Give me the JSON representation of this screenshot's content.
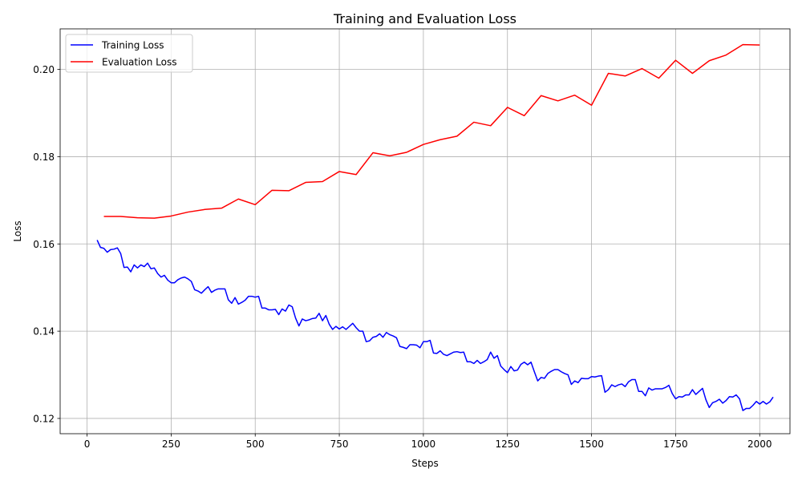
{
  "chart_data": {
    "type": "line",
    "title": "Training and Evaluation Loss",
    "xlabel": "Steps",
    "ylabel": "Loss",
    "xlim": [
      -80,
      2090
    ],
    "ylim": [
      0.1165,
      0.2093
    ],
    "xticks": [
      0,
      250,
      500,
      750,
      1000,
      1250,
      1500,
      1750,
      2000
    ],
    "xtick_labels": [
      "0",
      "250",
      "500",
      "750",
      "1000",
      "1250",
      "1500",
      "1750",
      "2000"
    ],
    "yticks": [
      0.12,
      0.14,
      0.16,
      0.18,
      0.2
    ],
    "ytick_labels": [
      "0.12",
      "0.14",
      "0.16",
      "0.18",
      "0.20"
    ],
    "grid": true,
    "legend_position": "top-left",
    "series": [
      {
        "name": "Training Loss",
        "color": "#0000ff",
        "x": [
          30,
          40,
          50,
          60,
          70,
          80,
          90,
          100,
          110,
          120,
          130,
          140,
          150,
          160,
          170,
          180,
          190,
          200,
          210,
          220,
          230,
          240,
          250,
          260,
          270,
          280,
          290,
          300,
          310,
          320,
          330,
          340,
          350,
          360,
          370,
          380,
          390,
          400,
          410,
          420,
          430,
          440,
          450,
          460,
          470,
          480,
          490,
          500,
          510,
          520,
          530,
          540,
          550,
          560,
          570,
          580,
          590,
          600,
          610,
          620,
          630,
          640,
          650,
          660,
          670,
          680,
          690,
          700,
          710,
          720,
          730,
          740,
          750,
          760,
          770,
          780,
          790,
          800,
          810,
          820,
          830,
          840,
          850,
          860,
          870,
          880,
          890,
          900,
          910,
          920,
          930,
          940,
          950,
          960,
          970,
          980,
          990,
          1000,
          1010,
          1020,
          1030,
          1040,
          1050,
          1060,
          1070,
          1080,
          1090,
          1100,
          1110,
          1120,
          1130,
          1140,
          1150,
          1160,
          1170,
          1180,
          1190,
          1200,
          1210,
          1220,
          1230,
          1240,
          1250,
          1260,
          1270,
          1280,
          1290,
          1300,
          1310,
          1320,
          1330,
          1340,
          1350,
          1360,
          1370,
          1380,
          1390,
          1400,
          1410,
          1420,
          1430,
          1440,
          1450,
          1460,
          1470,
          1480,
          1490,
          1500,
          1510,
          1520,
          1530,
          1540,
          1550,
          1560,
          1570,
          1580,
          1590,
          1600,
          1610,
          1620,
          1630,
          1640,
          1650,
          1660,
          1670,
          1680,
          1690,
          1700,
          1710,
          1720,
          1730,
          1740,
          1750,
          1760,
          1770,
          1780,
          1790,
          1800,
          1810,
          1820,
          1830,
          1840,
          1850,
          1860,
          1870,
          1880,
          1890,
          1900,
          1910,
          1920,
          1930,
          1940,
          1950,
          1960,
          1970,
          1980,
          1990,
          2000,
          2010,
          2020,
          2030,
          2040
        ],
        "values": [
          0.1609,
          0.1592,
          0.159,
          0.1581,
          0.1587,
          0.1588,
          0.1591,
          0.1578,
          0.1546,
          0.1547,
          0.1536,
          0.1552,
          0.1545,
          0.1552,
          0.1548,
          0.1556,
          0.1543,
          0.1545,
          0.1532,
          0.1524,
          0.1528,
          0.1517,
          0.1511,
          0.1511,
          0.1518,
          0.1522,
          0.1524,
          0.152,
          0.1514,
          0.1495,
          0.1492,
          0.1487,
          0.1495,
          0.1502,
          0.1489,
          0.1494,
          0.1497,
          0.1497,
          0.1497,
          0.1472,
          0.1464,
          0.1477,
          0.1462,
          0.1466,
          0.1471,
          0.148,
          0.148,
          0.1478,
          0.148,
          0.1453,
          0.1453,
          0.1449,
          0.1449,
          0.145,
          0.1438,
          0.1451,
          0.1446,
          0.146,
          0.1456,
          0.143,
          0.1412,
          0.1428,
          0.1424,
          0.1426,
          0.1429,
          0.143,
          0.1441,
          0.1424,
          0.1436,
          0.1416,
          0.1404,
          0.1411,
          0.1405,
          0.141,
          0.1404,
          0.1411,
          0.1418,
          0.1408,
          0.14,
          0.14,
          0.1376,
          0.1378,
          0.1386,
          0.1388,
          0.1394,
          0.1386,
          0.1397,
          0.1392,
          0.1389,
          0.1385,
          0.1365,
          0.1363,
          0.136,
          0.1369,
          0.1369,
          0.1368,
          0.1362,
          0.1376,
          0.1376,
          0.1379,
          0.135,
          0.1349,
          0.1355,
          0.1347,
          0.1344,
          0.1348,
          0.1352,
          0.1353,
          0.1351,
          0.1352,
          0.133,
          0.133,
          0.1326,
          0.1333,
          0.1326,
          0.133,
          0.1335,
          0.1352,
          0.1338,
          0.1344,
          0.132,
          0.1312,
          0.1305,
          0.1319,
          0.1309,
          0.1311,
          0.1324,
          0.1329,
          0.1323,
          0.1329,
          0.1307,
          0.1286,
          0.1294,
          0.1292,
          0.1303,
          0.1308,
          0.1312,
          0.1312,
          0.1307,
          0.1303,
          0.13,
          0.1278,
          0.1286,
          0.1282,
          0.1292,
          0.1291,
          0.1291,
          0.1296,
          0.1295,
          0.1297,
          0.1298,
          0.126,
          0.1266,
          0.1277,
          0.1273,
          0.1277,
          0.1279,
          0.1273,
          0.1284,
          0.1289,
          0.1289,
          0.1262,
          0.1262,
          0.1252,
          0.127,
          0.1265,
          0.1268,
          0.1268,
          0.1268,
          0.1271,
          0.1276,
          0.1257,
          0.1245,
          0.125,
          0.1249,
          0.1254,
          0.1254,
          0.1266,
          0.1255,
          0.1262,
          0.1269,
          0.1243,
          0.1225,
          0.1236,
          0.1239,
          0.1244,
          0.1235,
          0.1241,
          0.125,
          0.1249,
          0.1254,
          0.1245,
          0.1218,
          0.1223,
          0.1223,
          0.123,
          0.1239,
          0.1233,
          0.1239,
          0.1233,
          0.1238,
          0.1249
        ]
      },
      {
        "name": "Evaluation Loss",
        "color": "#ff0000",
        "x": [
          50,
          100,
          150,
          200,
          250,
          300,
          350,
          400,
          450,
          500,
          550,
          600,
          650,
          700,
          750,
          800,
          850,
          900,
          950,
          1000,
          1050,
          1100,
          1150,
          1200,
          1250,
          1300,
          1350,
          1400,
          1450,
          1500,
          1550,
          1600,
          1650,
          1700,
          1750,
          1800,
          1850,
          1900,
          1950,
          2000
        ],
        "values": [
          0.1663,
          0.1663,
          0.166,
          0.1659,
          0.1664,
          0.1673,
          0.1679,
          0.1682,
          0.1703,
          0.169,
          0.1723,
          0.1722,
          0.1741,
          0.1743,
          0.1766,
          0.1759,
          0.1809,
          0.1802,
          0.181,
          0.1828,
          0.1839,
          0.1847,
          0.1879,
          0.1871,
          0.1913,
          0.1894,
          0.194,
          0.1928,
          0.1941,
          0.1918,
          0.1991,
          0.1985,
          0.2002,
          0.198,
          0.2021,
          0.1991,
          0.202,
          0.2033,
          0.2057,
          0.2056
        ]
      }
    ]
  }
}
